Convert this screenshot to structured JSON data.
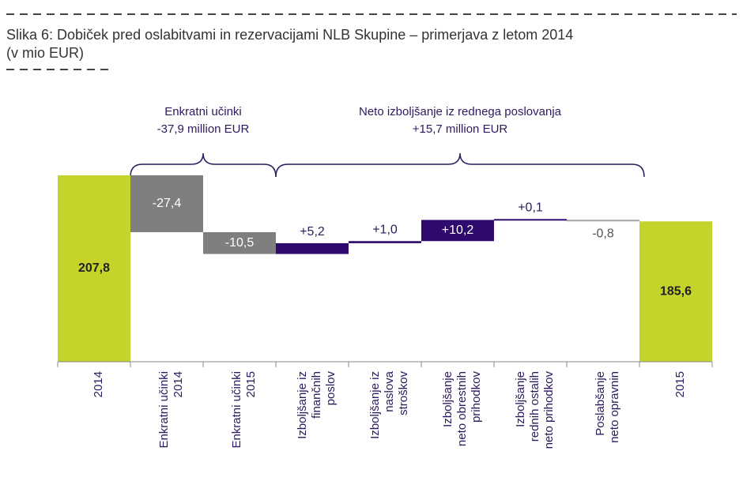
{
  "chart_data": {
    "type": "waterfall",
    "title": "Slika 6: Dobiček pred oslabitvami in rezervacijami NLB Skupine – primerjava z letom 2014",
    "subtitle": "(v mio EUR)",
    "annotations": [
      [
        "Enkratni učinki",
        "-37,9 million EUR"
      ],
      [
        "Neto izboljšanje iz rednega poslovanja",
        "+15,7 million EUR"
      ]
    ],
    "categories": [
      [
        "2014"
      ],
      [
        "Enkratni učinki",
        "2014"
      ],
      [
        "Enkratni učinki",
        "2015"
      ],
      [
        "Izboljšanje iz",
        "finančnih",
        "poslov"
      ],
      [
        "Izboljšanje iz",
        "naslova",
        "stroškov"
      ],
      [
        "Izboljšanje",
        "neto obrestnih",
        "prihodkov"
      ],
      [
        "Izboljšanje",
        "rednih ostalih",
        "neto prihodkov"
      ],
      [
        "Poslabšanje",
        "neto opravnin"
      ],
      [
        "2015"
      ]
    ],
    "values": [
      207.8,
      -27.4,
      -10.5,
      5.2,
      1.0,
      10.2,
      0.1,
      -0.8,
      185.6
    ],
    "value_labels": [
      "207,8",
      "-27,4",
      "-10,5",
      "+5,2",
      "+1,0",
      "+10,2",
      "+0,1",
      "-0,8",
      "185,6"
    ],
    "colors": [
      "#c5d32a",
      "#7f7f7f",
      "#7f7f7f",
      "#2d0a6b",
      "#2d0a6b",
      "#2d0a6b",
      "#2d0a6b",
      "#a6a6a6",
      "#c5d32a"
    ],
    "ylim": [
      118,
      215
    ]
  }
}
